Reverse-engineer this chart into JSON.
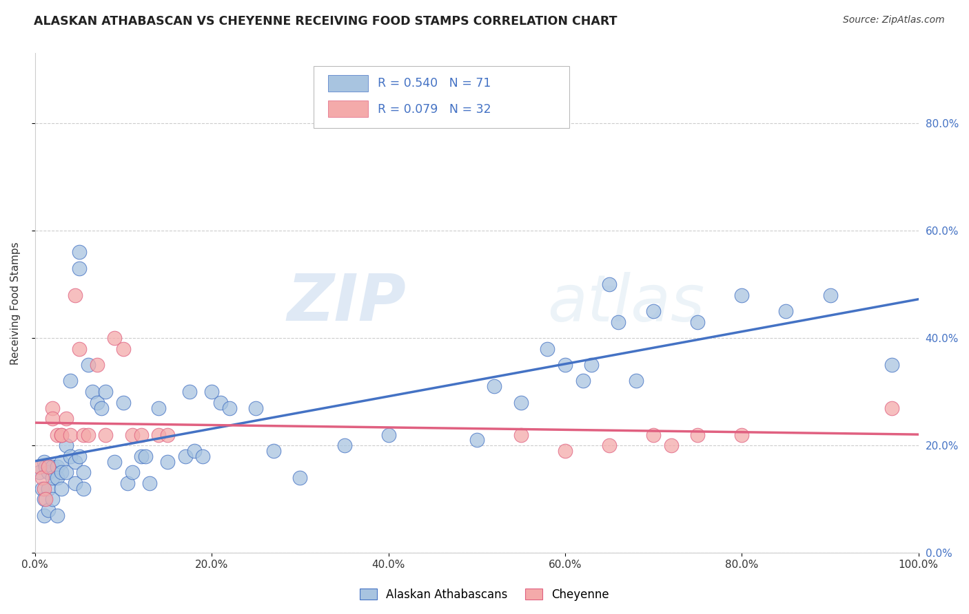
{
  "title": "ALASKAN ATHABASCAN VS CHEYENNE RECEIVING FOOD STAMPS CORRELATION CHART",
  "source": "Source: ZipAtlas.com",
  "ylabel": "Receiving Food Stamps",
  "legend_label1": "Alaskan Athabascans",
  "legend_label2": "Cheyenne",
  "R1": 0.54,
  "N1": 71,
  "R2": 0.079,
  "N2": 32,
  "color1": "#A8C4E0",
  "color2": "#F4AAAA",
  "line_color1": "#4472C4",
  "line_color2": "#E06080",
  "watermark_zip": "ZIP",
  "watermark_atlas": "atlas",
  "bg_color": "#FFFFFF",
  "grid_color": "#CCCCCC",
  "blue_scatter_x": [
    0.005,
    0.008,
    0.01,
    0.01,
    0.01,
    0.012,
    0.015,
    0.015,
    0.015,
    0.02,
    0.02,
    0.02,
    0.025,
    0.025,
    0.025,
    0.03,
    0.03,
    0.03,
    0.035,
    0.035,
    0.04,
    0.04,
    0.045,
    0.045,
    0.05,
    0.05,
    0.05,
    0.055,
    0.055,
    0.06,
    0.065,
    0.07,
    0.075,
    0.08,
    0.09,
    0.1,
    0.105,
    0.11,
    0.12,
    0.125,
    0.13,
    0.14,
    0.15,
    0.17,
    0.175,
    0.18,
    0.19,
    0.2,
    0.21,
    0.22,
    0.25,
    0.27,
    0.3,
    0.35,
    0.4,
    0.5,
    0.52,
    0.55,
    0.58,
    0.6,
    0.62,
    0.63,
    0.65,
    0.66,
    0.68,
    0.7,
    0.75,
    0.8,
    0.85,
    0.9,
    0.97
  ],
  "blue_scatter_y": [
    0.15,
    0.12,
    0.1,
    0.17,
    0.07,
    0.16,
    0.15,
    0.08,
    0.12,
    0.16,
    0.14,
    0.1,
    0.16,
    0.14,
    0.07,
    0.17,
    0.15,
    0.12,
    0.2,
    0.15,
    0.32,
    0.18,
    0.17,
    0.13,
    0.56,
    0.18,
    0.53,
    0.15,
    0.12,
    0.35,
    0.3,
    0.28,
    0.27,
    0.3,
    0.17,
    0.28,
    0.13,
    0.15,
    0.18,
    0.18,
    0.13,
    0.27,
    0.17,
    0.18,
    0.3,
    0.19,
    0.18,
    0.3,
    0.28,
    0.27,
    0.27,
    0.19,
    0.14,
    0.2,
    0.22,
    0.21,
    0.31,
    0.28,
    0.38,
    0.35,
    0.32,
    0.35,
    0.5,
    0.43,
    0.32,
    0.45,
    0.43,
    0.48,
    0.45,
    0.48,
    0.35
  ],
  "pink_scatter_x": [
    0.005,
    0.008,
    0.01,
    0.012,
    0.015,
    0.02,
    0.02,
    0.025,
    0.03,
    0.03,
    0.035,
    0.04,
    0.045,
    0.05,
    0.055,
    0.06,
    0.07,
    0.08,
    0.09,
    0.1,
    0.11,
    0.12,
    0.14,
    0.15,
    0.55,
    0.6,
    0.65,
    0.7,
    0.72,
    0.75,
    0.8,
    0.97
  ],
  "pink_scatter_y": [
    0.16,
    0.14,
    0.12,
    0.1,
    0.16,
    0.27,
    0.25,
    0.22,
    0.22,
    0.22,
    0.25,
    0.22,
    0.48,
    0.38,
    0.22,
    0.22,
    0.35,
    0.22,
    0.4,
    0.38,
    0.22,
    0.22,
    0.22,
    0.22,
    0.22,
    0.19,
    0.2,
    0.22,
    0.2,
    0.22,
    0.22,
    0.27
  ],
  "xlim": [
    0.0,
    1.0
  ],
  "ylim": [
    0.0,
    0.93
  ],
  "xticks": [
    0.0,
    0.2,
    0.4,
    0.6,
    0.8,
    1.0
  ],
  "yticks_right": [
    0.0,
    0.2,
    0.4,
    0.6,
    0.8
  ],
  "xticklabels": [
    "0.0%",
    "20.0%",
    "40.0%",
    "60.0%",
    "80.0%",
    "100.0%"
  ],
  "yticklabels_right": [
    "0.0%",
    "20.0%",
    "40.0%",
    "60.0%",
    "80.0%"
  ]
}
